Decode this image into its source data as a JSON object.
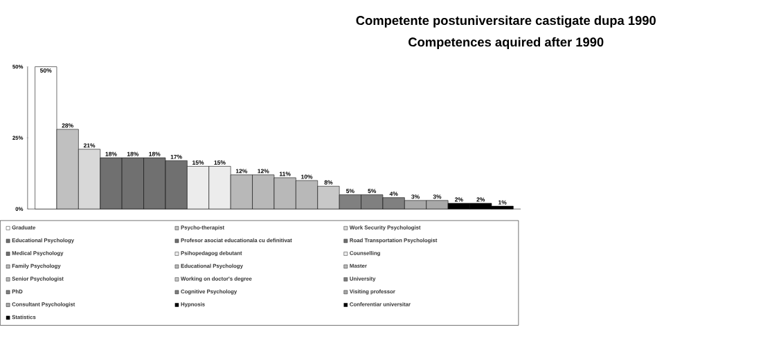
{
  "chart_data": {
    "type": "bar",
    "title": "Competente postuniversitare castigate dupa 1990",
    "subtitle": "Competences aquired after 1990",
    "categories": [
      null
    ],
    "series": [
      {
        "name": "Graduate",
        "color": "#ffffff",
        "values": [
          50
        ],
        "value_labels": [
          "50%"
        ]
      },
      {
        "name": "Psycho-therapist",
        "color": "#c0c0c0",
        "values": [
          28
        ],
        "value_labels": [
          "28%"
        ]
      },
      {
        "name": "Work Security Psychologist",
        "color": "#d8d8d8",
        "values": [
          21
        ],
        "value_labels": [
          "21%"
        ]
      },
      {
        "name": "Educational Psychology",
        "color": "#707070",
        "values": [
          18
        ],
        "value_labels": [
          "18%"
        ]
      },
      {
        "name": "Profesor asociat educationala cu definitivat",
        "color": "#707070",
        "values": [
          18
        ],
        "value_labels": [
          "18%"
        ]
      },
      {
        "name": "Road Transportation Psychologist",
        "color": "#707070",
        "values": [
          18
        ],
        "value_labels": [
          "18%"
        ]
      },
      {
        "name": "Medical Psychology",
        "color": "#707070",
        "values": [
          17
        ],
        "value_labels": [
          "17%"
        ]
      },
      {
        "name": "Psihopedagog debutant",
        "color": "#ececec",
        "values": [
          15
        ],
        "value_labels": [
          "15%"
        ]
      },
      {
        "name": "Counselling",
        "color": "#ececec",
        "values": [
          15
        ],
        "value_labels": [
          "15%"
        ]
      },
      {
        "name": "Family Psychology",
        "color": "#b8b8b8",
        "values": [
          12
        ],
        "value_labels": [
          "12%"
        ]
      },
      {
        "name": "Educational Psychology",
        "color": "#b8b8b8",
        "values": [
          12
        ],
        "value_labels": [
          "12%"
        ]
      },
      {
        "name": "Master",
        "color": "#b8b8b8",
        "values": [
          11
        ],
        "value_labels": [
          "11%"
        ]
      },
      {
        "name": "Senior Psychologist",
        "color": "#b8b8b8",
        "values": [
          10
        ],
        "value_labels": [
          "10%"
        ]
      },
      {
        "name": "Working on doctor's degree",
        "color": "#c8c8c8",
        "values": [
          8
        ],
        "value_labels": [
          "8%"
        ]
      },
      {
        "name": "University",
        "color": "#808080",
        "values": [
          5
        ],
        "value_labels": [
          "5%"
        ]
      },
      {
        "name": "PhD",
        "color": "#808080",
        "values": [
          5
        ],
        "value_labels": [
          "5%"
        ]
      },
      {
        "name": "Cognitive Psychology",
        "color": "#808080",
        "values": [
          4
        ],
        "value_labels": [
          "4%"
        ]
      },
      {
        "name": "Visiting professor",
        "color": "#a8a8a8",
        "values": [
          3
        ],
        "value_labels": [
          "3%"
        ]
      },
      {
        "name": "Consultant Psychologist",
        "color": "#a8a8a8",
        "values": [
          3
        ],
        "value_labels": [
          "3%"
        ]
      },
      {
        "name": "Hypnosis",
        "color": "#000000",
        "values": [
          2
        ],
        "value_labels": [
          "2%"
        ]
      },
      {
        "name": "Conferentiar universitar",
        "color": "#000000",
        "values": [
          2
        ],
        "value_labels": [
          "2%"
        ]
      },
      {
        "name": "Statistics",
        "color": "#000000",
        "values": [
          1
        ],
        "value_labels": [
          "1%"
        ]
      }
    ],
    "ylim": [
      0,
      50
    ],
    "yticks": [
      {
        "value": 0,
        "label": "0%"
      },
      {
        "value": 25,
        "label": "25%"
      },
      {
        "value": 50,
        "label": "50%"
      }
    ],
    "tick_labels": "y",
    "legend": "bottom"
  }
}
